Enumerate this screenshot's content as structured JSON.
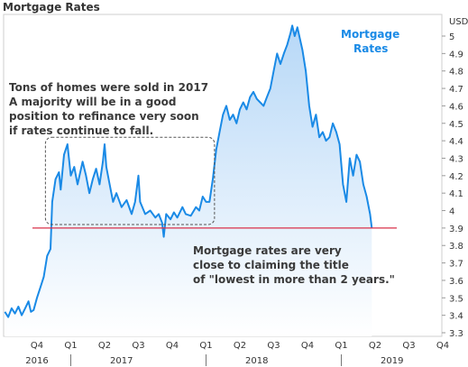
{
  "header": {
    "title": "Mortgage Rates"
  },
  "chart_data": {
    "type": "area",
    "title": "Mortgage Rates",
    "y_unit": "USD",
    "ylim": [
      3.25,
      5.15
    ],
    "y_ticks": [
      3.3,
      3.4,
      3.5,
      3.6,
      3.7,
      3.8,
      3.9,
      4,
      4.1,
      4.2,
      4.3,
      4.4,
      4.5,
      4.6,
      4.7,
      4.8,
      4.9,
      5
    ],
    "x_ticks": [
      "Q4",
      "Q1",
      "Q2",
      "Q3",
      "Q4",
      "Q1",
      "Q2",
      "Q3",
      "Q4",
      "Q1",
      "Q2",
      "Q3",
      "Q4"
    ],
    "year_labels": [
      {
        "label": "2016",
        "tick": 0
      },
      {
        "label": "2017",
        "tick": 2.5
      },
      {
        "label": "2018",
        "tick": 6.5
      },
      {
        "label": "2019",
        "tick": 10.5
      }
    ],
    "legend": "Mortgage Rates",
    "reference_line": {
      "y": 3.9,
      "color": "#d9304a"
    },
    "highlight_box": {
      "x_range": [
        0.25,
        5.25
      ],
      "y_range": [
        3.92,
        4.42
      ]
    },
    "annotations": [
      "Tons of homes were sold in 2017\nA majority will be in a good\nposition to refinance very soon\nif rates continue to fall.",
      "Mortgage rates are very\nclose to claiming the title\nof \"lowest in more than 2 years.\""
    ],
    "series": [
      {
        "name": "Mortgage Rates",
        "color": "#1a8ae6",
        "points": [
          [
            -0.95,
            3.42
          ],
          [
            -0.85,
            3.39
          ],
          [
            -0.75,
            3.44
          ],
          [
            -0.65,
            3.41
          ],
          [
            -0.55,
            3.45
          ],
          [
            -0.45,
            3.4
          ],
          [
            -0.35,
            3.44
          ],
          [
            -0.25,
            3.48
          ],
          [
            -0.18,
            3.42
          ],
          [
            -0.1,
            3.43
          ],
          [
            0.0,
            3.5
          ],
          [
            0.1,
            3.56
          ],
          [
            0.2,
            3.62
          ],
          [
            0.3,
            3.74
          ],
          [
            0.4,
            3.78
          ],
          [
            0.45,
            4.05
          ],
          [
            0.55,
            4.18
          ],
          [
            0.65,
            4.22
          ],
          [
            0.7,
            4.12
          ],
          [
            0.8,
            4.32
          ],
          [
            0.9,
            4.38
          ],
          [
            1.0,
            4.2
          ],
          [
            1.1,
            4.25
          ],
          [
            1.2,
            4.15
          ],
          [
            1.35,
            4.28
          ],
          [
            1.45,
            4.2
          ],
          [
            1.55,
            4.1
          ],
          [
            1.65,
            4.18
          ],
          [
            1.75,
            4.24
          ],
          [
            1.85,
            4.15
          ],
          [
            1.95,
            4.28
          ],
          [
            2.0,
            4.38
          ],
          [
            2.05,
            4.25
          ],
          [
            2.15,
            4.15
          ],
          [
            2.25,
            4.05
          ],
          [
            2.35,
            4.1
          ],
          [
            2.5,
            4.02
          ],
          [
            2.65,
            4.06
          ],
          [
            2.8,
            3.98
          ],
          [
            2.9,
            4.05
          ],
          [
            3.0,
            4.2
          ],
          [
            3.05,
            4.05
          ],
          [
            3.2,
            3.98
          ],
          [
            3.35,
            4.0
          ],
          [
            3.5,
            3.96
          ],
          [
            3.6,
            3.98
          ],
          [
            3.7,
            3.93
          ],
          [
            3.75,
            3.85
          ],
          [
            3.82,
            3.98
          ],
          [
            3.95,
            3.95
          ],
          [
            4.05,
            3.99
          ],
          [
            4.15,
            3.96
          ],
          [
            4.3,
            4.02
          ],
          [
            4.4,
            3.98
          ],
          [
            4.55,
            3.97
          ],
          [
            4.7,
            4.02
          ],
          [
            4.8,
            4.0
          ],
          [
            4.9,
            4.08
          ],
          [
            5.0,
            4.05
          ],
          [
            5.1,
            4.05
          ],
          [
            5.2,
            4.18
          ],
          [
            5.3,
            4.35
          ],
          [
            5.4,
            4.45
          ],
          [
            5.5,
            4.55
          ],
          [
            5.6,
            4.6
          ],
          [
            5.7,
            4.52
          ],
          [
            5.8,
            4.55
          ],
          [
            5.9,
            4.5
          ],
          [
            6.0,
            4.58
          ],
          [
            6.1,
            4.62
          ],
          [
            6.2,
            4.58
          ],
          [
            6.3,
            4.65
          ],
          [
            6.4,
            4.68
          ],
          [
            6.5,
            4.64
          ],
          [
            6.6,
            4.62
          ],
          [
            6.7,
            4.6
          ],
          [
            6.8,
            4.65
          ],
          [
            6.9,
            4.7
          ],
          [
            7.0,
            4.8
          ],
          [
            7.1,
            4.9
          ],
          [
            7.2,
            4.84
          ],
          [
            7.3,
            4.9
          ],
          [
            7.4,
            4.95
          ],
          [
            7.5,
            5.02
          ],
          [
            7.55,
            5.06
          ],
          [
            7.62,
            5.0
          ],
          [
            7.7,
            5.05
          ],
          [
            7.78,
            4.98
          ],
          [
            7.85,
            4.92
          ],
          [
            7.95,
            4.8
          ],
          [
            8.05,
            4.6
          ],
          [
            8.15,
            4.48
          ],
          [
            8.25,
            4.55
          ],
          [
            8.35,
            4.42
          ],
          [
            8.45,
            4.45
          ],
          [
            8.55,
            4.4
          ],
          [
            8.65,
            4.42
          ],
          [
            8.75,
            4.5
          ],
          [
            8.85,
            4.45
          ],
          [
            8.95,
            4.38
          ],
          [
            9.05,
            4.15
          ],
          [
            9.15,
            4.05
          ],
          [
            9.25,
            4.3
          ],
          [
            9.35,
            4.2
          ],
          [
            9.45,
            4.32
          ],
          [
            9.55,
            4.28
          ],
          [
            9.65,
            4.15
          ],
          [
            9.75,
            4.08
          ],
          [
            9.85,
            3.98
          ],
          [
            9.9,
            3.9
          ]
        ]
      }
    ]
  }
}
